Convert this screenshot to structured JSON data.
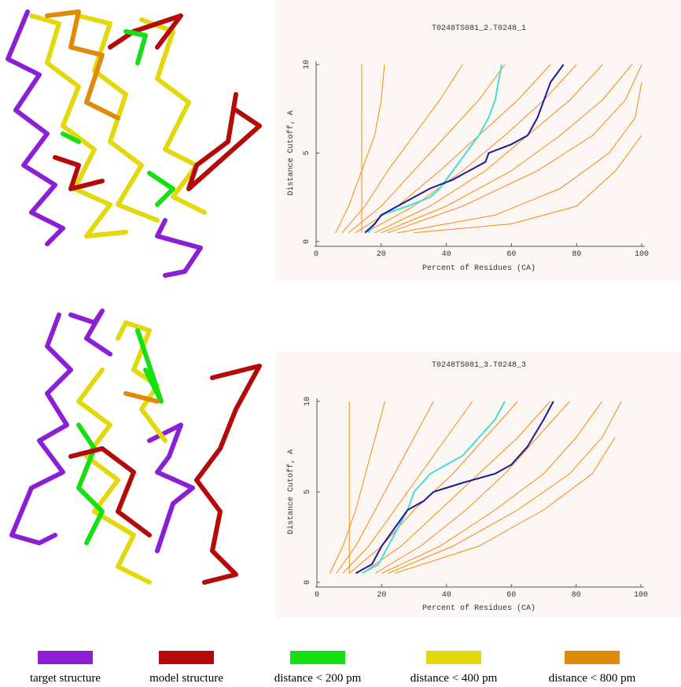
{
  "chart_data": [
    {
      "type": "line",
      "title": "T0248TS081_2.T0248_1",
      "x_label": "Percent of Residues (CA)",
      "y_label": "Distance Cutoff, A",
      "xlim": [
        0,
        100
      ],
      "ylim": [
        0,
        10
      ],
      "xticks": [
        0,
        20,
        40,
        60,
        80,
        100
      ],
      "yticks": [
        0,
        5,
        10
      ],
      "series": [
        {
          "color": "#f58a0c",
          "x": [
            14,
            14
          ],
          "values": [
            0.5,
            10
          ]
        },
        {
          "color": "#f58a0c",
          "x": [
            6,
            10,
            14,
            18,
            20,
            21
          ],
          "values": [
            0.5,
            2,
            4,
            6,
            8,
            10
          ]
        },
        {
          "color": "#f58a0c",
          "x": [
            8,
            15,
            22,
            30,
            38,
            45
          ],
          "values": [
            0.5,
            2,
            4,
            6,
            8,
            10
          ]
        },
        {
          "color": "#f58a0c",
          "x": [
            10,
            20,
            30,
            40,
            50,
            58
          ],
          "values": [
            0.5,
            2,
            4,
            6,
            8,
            10
          ]
        },
        {
          "color": "#f58a0c",
          "x": [
            12,
            25,
            38,
            50,
            62,
            72
          ],
          "values": [
            0.5,
            2,
            4,
            6,
            8,
            10
          ]
        },
        {
          "color": "#f58a0c",
          "x": [
            15,
            30,
            45,
            58,
            70,
            80
          ],
          "values": [
            0.5,
            2,
            4,
            6,
            8,
            10
          ]
        },
        {
          "color": "#f58a0c",
          "x": [
            18,
            35,
            52,
            65,
            78,
            88
          ],
          "values": [
            0.5,
            2,
            4,
            6,
            8,
            10
          ]
        },
        {
          "color": "#f58a0c",
          "x": [
            20,
            40,
            60,
            75,
            88,
            97
          ],
          "values": [
            0.5,
            2,
            4,
            6,
            8,
            10
          ]
        },
        {
          "color": "#f58a0c",
          "x": [
            22,
            45,
            68,
            85,
            95,
            100
          ],
          "values": [
            0.5,
            2,
            4,
            6,
            8,
            10
          ]
        },
        {
          "color": "#f58a0c",
          "x": [
            25,
            55,
            75,
            90,
            98,
            100
          ],
          "values": [
            0.5,
            1.5,
            3,
            5,
            7,
            9
          ]
        },
        {
          "color": "#f58a0c",
          "x": [
            30,
            60,
            80,
            92,
            100
          ],
          "values": [
            0.5,
            1,
            2,
            4,
            6
          ]
        },
        {
          "color": "#40e0d0",
          "x": [
            16,
            20,
            28,
            35,
            38,
            42,
            46,
            50,
            53,
            55,
            56,
            57
          ],
          "values": [
            0.5,
            1.5,
            2,
            2.5,
            3,
            4,
            5,
            6,
            7,
            8,
            9,
            10
          ]
        },
        {
          "color": "#1a1aa0",
          "x": [
            15,
            18,
            20,
            25,
            30,
            35,
            42,
            47,
            52,
            53,
            60,
            65,
            68,
            70,
            72,
            76
          ],
          "values": [
            0.5,
            1,
            1.5,
            2,
            2.5,
            3,
            3.5,
            4,
            4.5,
            5,
            5.5,
            6,
            7,
            8,
            9,
            10
          ]
        }
      ]
    },
    {
      "type": "line",
      "title": "T0248TS081_3.T0248_3",
      "x_label": "Percent of Residues (CA)",
      "y_label": "Distance Cutoff, A",
      "xlim": [
        0,
        100
      ],
      "ylim": [
        0,
        10
      ],
      "xticks": [
        0,
        20,
        40,
        60,
        80,
        100
      ],
      "yticks": [
        0,
        5,
        10
      ],
      "series": [
        {
          "color": "#f58a0c",
          "x": [
            10,
            10
          ],
          "values": [
            0.5,
            10
          ]
        },
        {
          "color": "#f58a0c",
          "x": [
            4,
            8,
            12,
            15,
            18,
            21
          ],
          "values": [
            0.5,
            2,
            4,
            6,
            8,
            10
          ]
        },
        {
          "color": "#f58a0c",
          "x": [
            6,
            12,
            18,
            24,
            30,
            36
          ],
          "values": [
            0.5,
            2,
            4,
            6,
            8,
            10
          ]
        },
        {
          "color": "#f58a0c",
          "x": [
            8,
            16,
            24,
            32,
            40,
            48
          ],
          "values": [
            0.5,
            2,
            4,
            6,
            8,
            10
          ]
        },
        {
          "color": "#f58a0c",
          "x": [
            10,
            20,
            30,
            42,
            52,
            62
          ],
          "values": [
            0.5,
            2,
            4,
            6,
            8,
            10
          ]
        },
        {
          "color": "#f58a0c",
          "x": [
            14,
            26,
            38,
            50,
            62,
            72
          ],
          "values": [
            0.5,
            2,
            4,
            6,
            8,
            10
          ]
        },
        {
          "color": "#f58a0c",
          "x": [
            18,
            32,
            46,
            58,
            68,
            78
          ],
          "values": [
            0.5,
            2,
            4,
            6,
            8,
            10
          ]
        },
        {
          "color": "#f58a0c",
          "x": [
            20,
            38,
            55,
            70,
            80,
            88
          ],
          "values": [
            0.5,
            2,
            4,
            6,
            8,
            10
          ]
        },
        {
          "color": "#f58a0c",
          "x": [
            22,
            42,
            62,
            78,
            88,
            94
          ],
          "values": [
            0.5,
            2,
            4,
            6,
            8,
            10
          ]
        },
        {
          "color": "#f58a0c",
          "x": [
            24,
            50,
            70,
            85,
            92
          ],
          "values": [
            0.5,
            2,
            4,
            6,
            8
          ]
        },
        {
          "color": "#40e0d0",
          "x": [
            14,
            19,
            22,
            25,
            28,
            30,
            35,
            45,
            50,
            55,
            58
          ],
          "values": [
            0.5,
            1,
            2,
            3,
            4,
            5,
            6,
            7,
            8,
            9,
            10
          ]
        },
        {
          "color": "#1a1aa0",
          "x": [
            12,
            17,
            20,
            24,
            28,
            33,
            36,
            45,
            55,
            60,
            65,
            70,
            73
          ],
          "values": [
            0.5,
            1,
            2,
            3,
            4,
            4.5,
            5,
            5.5,
            6,
            6.5,
            7.5,
            9,
            10
          ]
        }
      ]
    }
  ],
  "legend": [
    {
      "label": "target structure",
      "color": "#8a1fd6"
    },
    {
      "label": "model structure",
      "color": "#b50a0a"
    },
    {
      "label": "distance < 200 pm",
      "color": "#14e014"
    },
    {
      "label": "distance < 400 pm",
      "color": "#e2d80a"
    },
    {
      "label": "distance < 800 pm",
      "color": "#e08a0a"
    }
  ]
}
